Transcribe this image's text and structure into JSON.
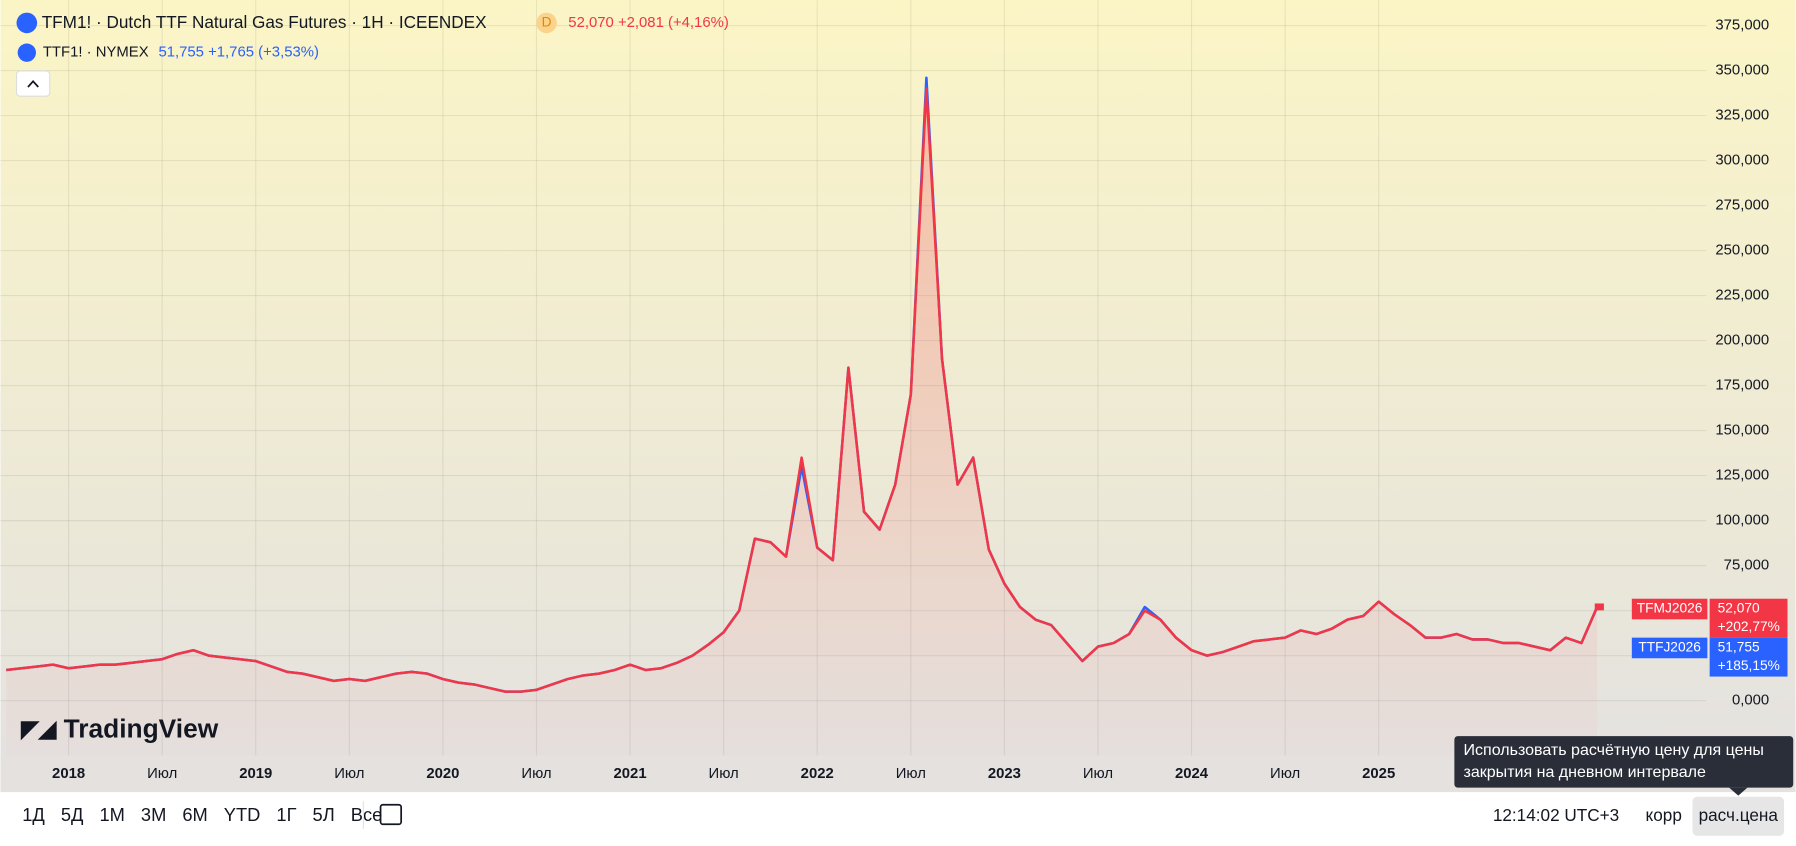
{
  "chart_data": {
    "type": "line",
    "legend": {
      "main": {
        "symbol": "TFM1! · Dutch TTF Natural Gas Futures · 1H · ICEENDEX",
        "badge": "D",
        "last": "52,070",
        "change": "+2,081",
        "pct": "(+4,16%)"
      },
      "second": {
        "symbol": "TTF1! · NYMEX",
        "last": "51,755",
        "change": "+1,765",
        "pct": "(+3,53%)"
      }
    },
    "watermark": "TradingView",
    "x": [
      "2017-09",
      "2017-10",
      "2017-11",
      "2017-12",
      "2018-01",
      "2018-02",
      "2018-03",
      "2018-04",
      "2018-05",
      "2018-06",
      "2018-07",
      "2018-08",
      "2018-09",
      "2018-10",
      "2018-11",
      "2018-12",
      "2019-01",
      "2019-02",
      "2019-03",
      "2019-04",
      "2019-05",
      "2019-06",
      "2019-07",
      "2019-08",
      "2019-09",
      "2019-10",
      "2019-11",
      "2019-12",
      "2020-01",
      "2020-02",
      "2020-03",
      "2020-04",
      "2020-05",
      "2020-06",
      "2020-07",
      "2020-08",
      "2020-09",
      "2020-10",
      "2020-11",
      "2020-12",
      "2021-01",
      "2021-02",
      "2021-03",
      "2021-04",
      "2021-05",
      "2021-06",
      "2021-07",
      "2021-08",
      "2021-09",
      "2021-10",
      "2021-11",
      "2021-12",
      "2022-01",
      "2022-02",
      "2022-03",
      "2022-04",
      "2022-05",
      "2022-06",
      "2022-07",
      "2022-08",
      "2022-09",
      "2022-10",
      "2022-11",
      "2022-12",
      "2023-01",
      "2023-02",
      "2023-03",
      "2023-04",
      "2023-05",
      "2023-06",
      "2023-07",
      "2023-08",
      "2023-09",
      "2023-10",
      "2023-11",
      "2023-12",
      "2024-01",
      "2024-02",
      "2024-03",
      "2024-04",
      "2024-05",
      "2024-06",
      "2024-07",
      "2024-08",
      "2024-09",
      "2024-10",
      "2024-11",
      "2024-12",
      "2025-01",
      "2025-02",
      "2025-03",
      "2025-04",
      "2025-05",
      "2025-06",
      "2025-07",
      "2025-08",
      "2025-09",
      "2025-10",
      "2025-11",
      "2025-12",
      "2026-01",
      "2026-02",
      "2026-03"
    ],
    "series": [
      {
        "name": "TTFJ2026",
        "color": "#2962ff",
        "last_label": "51,755",
        "pct_label": "+185,15%",
        "values": [
          17,
          18,
          19,
          20,
          18,
          19,
          20,
          20,
          21,
          22,
          23,
          26,
          28,
          25,
          24,
          23,
          22,
          19,
          16,
          15,
          13,
          11,
          12,
          11,
          13,
          15,
          16,
          15,
          12,
          10,
          9,
          7,
          5,
          5,
          6,
          9,
          12,
          14,
          15,
          17,
          20,
          17,
          18,
          21,
          25,
          31,
          38,
          50,
          90,
          88,
          80,
          130,
          85,
          78,
          185,
          105,
          95,
          120,
          170,
          346,
          190,
          120,
          135,
          84,
          65,
          52,
          45,
          42,
          32,
          22,
          30,
          32,
          37,
          52,
          45,
          35,
          28,
          25,
          27,
          30,
          33,
          34,
          35,
          39,
          37,
          40,
          45,
          47,
          55,
          48,
          42,
          35,
          35,
          37,
          34,
          34,
          32,
          32,
          30,
          28,
          35,
          32,
          51.755
        ]
      },
      {
        "name": "TFMJ2026",
        "color": "#f23645",
        "last_label": "52,070",
        "pct_label": "+202,77%",
        "values": [
          17,
          18,
          19,
          20,
          18,
          19,
          20,
          20,
          21,
          22,
          23,
          26,
          28,
          25,
          24,
          23,
          22,
          19,
          16,
          15,
          13,
          11,
          12,
          11,
          13,
          15,
          16,
          15,
          12,
          10,
          9,
          7,
          5,
          5,
          6,
          9,
          12,
          14,
          15,
          17,
          20,
          17,
          18,
          21,
          25,
          31,
          38,
          50,
          90,
          88,
          80,
          135,
          85,
          78,
          185,
          105,
          95,
          120,
          170,
          340,
          190,
          120,
          135,
          84,
          65,
          52,
          45,
          42,
          32,
          22,
          30,
          32,
          37,
          50,
          45,
          35,
          28,
          25,
          27,
          30,
          33,
          34,
          35,
          39,
          37,
          40,
          45,
          47,
          55,
          48,
          42,
          35,
          35,
          37,
          34,
          34,
          32,
          32,
          30,
          28,
          35,
          32,
          52.07
        ]
      }
    ],
    "xlim": [
      "2017-09",
      "2026-10"
    ],
    "xticks": [
      {
        "value": "2018-01",
        "label": "2018"
      },
      {
        "value": "2018-07",
        "label": "Июл"
      },
      {
        "value": "2019-01",
        "label": "2019"
      },
      {
        "value": "2019-07",
        "label": "Июл"
      },
      {
        "value": "2020-01",
        "label": "2020"
      },
      {
        "value": "2020-07",
        "label": "Июл"
      },
      {
        "value": "2021-01",
        "label": "2021"
      },
      {
        "value": "2021-07",
        "label": "Июл"
      },
      {
        "value": "2022-01",
        "label": "2022"
      },
      {
        "value": "2022-07",
        "label": "Июл"
      },
      {
        "value": "2023-01",
        "label": "2023"
      },
      {
        "value": "2023-07",
        "label": "Июл"
      },
      {
        "value": "2024-01",
        "label": "2024"
      },
      {
        "value": "2024-07",
        "label": "Июл"
      },
      {
        "value": "2025-01",
        "label": "2025"
      }
    ],
    "ylim": [
      -30.5,
      386
    ],
    "yticks": [
      {
        "value": 0,
        "label": "0,000"
      },
      {
        "value": 25,
        "label": "25,000"
      },
      {
        "value": 50,
        "label": "50,000"
      },
      {
        "value": 75,
        "label": "75,000"
      },
      {
        "value": 100,
        "label": "100,000"
      },
      {
        "value": 125,
        "label": "125,000"
      },
      {
        "value": 150,
        "label": "150,000"
      },
      {
        "value": 175,
        "label": "175,000"
      },
      {
        "value": 200,
        "label": "200,000"
      },
      {
        "value": 225,
        "label": "225,000"
      },
      {
        "value": 250,
        "label": "250,000"
      },
      {
        "value": 275,
        "label": "275,000"
      },
      {
        "value": 300,
        "label": "300,000"
      },
      {
        "value": 325,
        "label": "325,000"
      },
      {
        "value": 350,
        "label": "350,000"
      },
      {
        "value": 375,
        "label": "375,000"
      }
    ],
    "grid": true
  },
  "toolbar": {
    "ranges": [
      "1Д",
      "5Д",
      "1М",
      "3М",
      "6М",
      "YTD",
      "1Г",
      "5Л",
      "Все"
    ],
    "clock": "12:14:02 UTC+3",
    "adj": "корр",
    "settle": "расч.цена"
  },
  "tooltip": [
    "Использовать расчётную цену для цены",
    "закрытия на дневном интервале"
  ]
}
